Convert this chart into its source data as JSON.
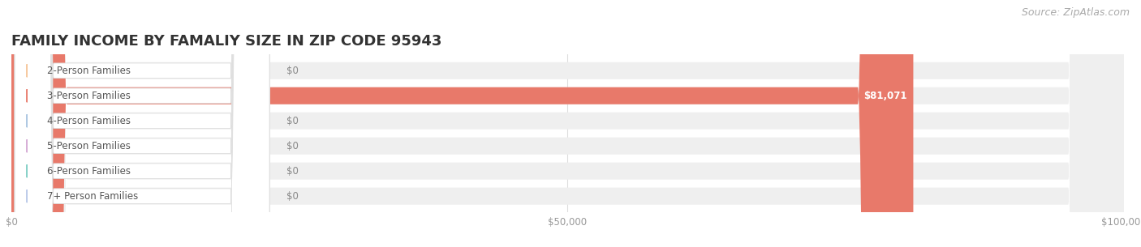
{
  "title": "FAMILY INCOME BY FAMALIY SIZE IN ZIP CODE 95943",
  "source": "Source: ZipAtlas.com",
  "categories": [
    "2-Person Families",
    "3-Person Families",
    "4-Person Families",
    "5-Person Families",
    "6-Person Families",
    "7+ Person Families"
  ],
  "values": [
    0,
    81071,
    0,
    0,
    0,
    0
  ],
  "bar_colors": [
    "#f5c598",
    "#e8796a",
    "#a8c4e0",
    "#d4a8d4",
    "#7ecec4",
    "#b8c8e8"
  ],
  "value_labels": [
    "$0",
    "$81,071",
    "$0",
    "$0",
    "$0",
    "$0"
  ],
  "xlim": [
    0,
    100000
  ],
  "xticks": [
    0,
    50000,
    100000
  ],
  "xtick_labels": [
    "$0",
    "$50,000",
    "$100,000"
  ],
  "background_color": "#ffffff",
  "bar_bg_color": "#efefef",
  "title_fontsize": 13,
  "label_fontsize": 8.5,
  "source_fontsize": 9
}
